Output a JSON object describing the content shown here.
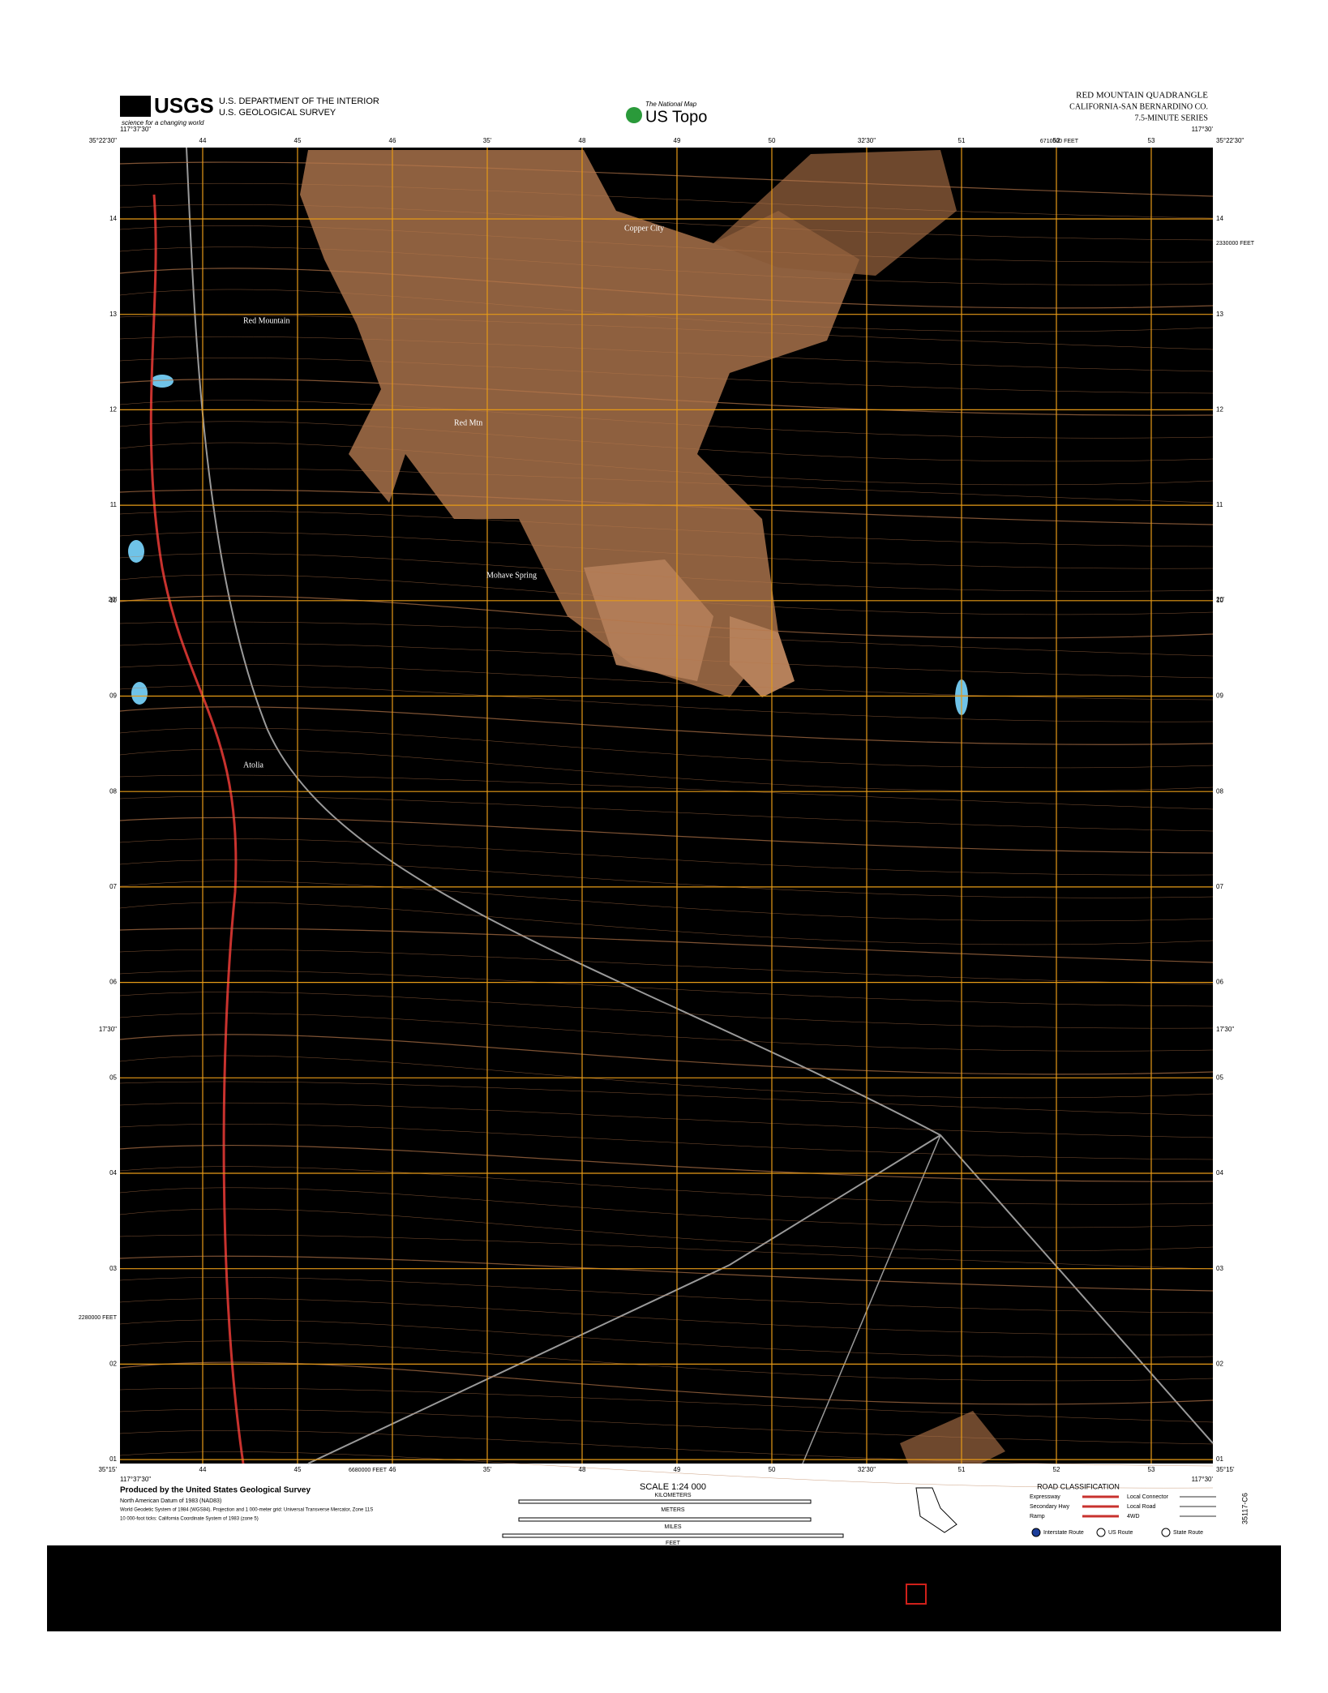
{
  "header": {
    "logo": "USGS",
    "tagline": "science for a changing world",
    "department": "U.S. DEPARTMENT OF THE INTERIOR",
    "survey": "U.S. GEOLOGICAL SURVEY",
    "national_map": "The National Map",
    "product": "US Topo",
    "quad_title": "RED MOUNTAIN QUADRANGLE",
    "state_county": "CALIFORNIA-SAN BERNARDINO CO.",
    "series": "7.5-MINUTE SERIES"
  },
  "map": {
    "corners": {
      "top_left_lon": "117°37'30\"",
      "top_left_lat": "35°22'30\"",
      "top_right_lon": "117°30'",
      "top_right_lat": "35°22'30\"",
      "bottom_left_lon": "117°37'30\"",
      "bottom_left_lat": "35°15'",
      "bottom_right_lon": "117°30'",
      "bottom_right_lat": "35°15'"
    },
    "top_ticks": [
      "44",
      "45",
      "46",
      "35'",
      "48",
      "49",
      "50",
      "32'30\"",
      "51",
      "52",
      "53"
    ],
    "side_ticks": [
      "14",
      "13",
      "12",
      "11",
      "10",
      "09",
      "08",
      "07",
      "06",
      "05",
      "04",
      "03",
      "02",
      "01"
    ],
    "side_minutes": [
      "20'",
      "17'30\""
    ],
    "feet_labels": [
      "6710000 FEET",
      "2330000 FEET",
      "2280000 FEET",
      "6680000 FEET"
    ],
    "places": [
      "Red Mountain",
      "Red Mtn",
      "Atolia",
      "Mohave Spring",
      "Copper City"
    ]
  },
  "footer": {
    "producer": "Produced by the United States Geological Survey",
    "datum": "North American Datum of 1983 (NAD83)",
    "grid": "World Geodetic System of 1984 (WGS84). Projection and 1 000-meter grid: Universal Transverse Mercator, Zone 11S",
    "state_plane": "10 000-foot ticks: California Coordinate System of 1983 (zone 5)",
    "scale": "SCALE 1:24 000",
    "units": [
      "KILOMETERS",
      "METERS",
      "MILES",
      "FEET"
    ],
    "road_title": "ROAD CLASSIFICATION",
    "roads": [
      "Expressway",
      "Secondary Hwy",
      "Ramp",
      "Local Connector",
      "Local Road",
      "4WD"
    ],
    "routes": [
      "Interstate Route",
      "US Route",
      "State Route"
    ],
    "quad_code": "35117-C6"
  }
}
